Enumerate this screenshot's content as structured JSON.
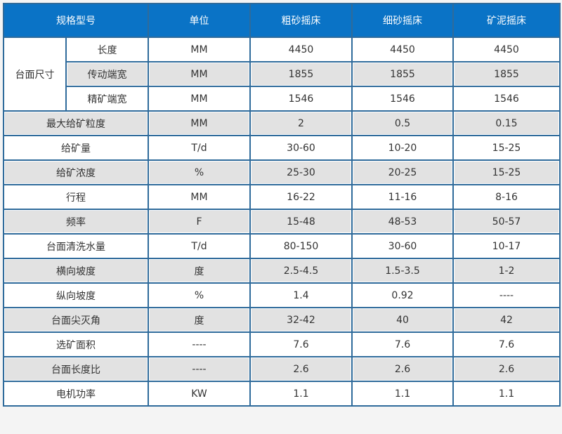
{
  "header": [
    "规格型号",
    "单位",
    "粗砂摇床",
    "细砂摇床",
    "矿泥摇床"
  ],
  "group_label": "台面尺寸",
  "group_rows": [
    {
      "name": "长度",
      "unit": "MM",
      "values": [
        "4450",
        "4450",
        "4450"
      ]
    },
    {
      "name": "传动端宽",
      "unit": "MM",
      "values": [
        "1855",
        "1855",
        "1855"
      ]
    },
    {
      "name": "精矿端宽",
      "unit": "MM",
      "values": [
        "1546",
        "1546",
        "1546"
      ]
    }
  ],
  "rows": [
    {
      "name": "最大给矿粒度",
      "unit": "MM",
      "values": [
        "2",
        "0.5",
        "0.15"
      ]
    },
    {
      "name": "给矿量",
      "unit": "T/d",
      "values": [
        "30-60",
        "10-20",
        "15-25"
      ]
    },
    {
      "name": "给矿浓度",
      "unit": "%",
      "values": [
        "25-30",
        "20-25",
        "15-25"
      ]
    },
    {
      "name": "行程",
      "unit": "MM",
      "values": [
        "16-22",
        "11-16",
        "8-16"
      ]
    },
    {
      "name": "频率",
      "unit": "F",
      "values": [
        "15-48",
        "48-53",
        "50-57"
      ]
    },
    {
      "name": "台面清洗水量",
      "unit": "T/d",
      "values": [
        "80-150",
        "30-60",
        "10-17"
      ]
    },
    {
      "name": "横向坡度",
      "unit": "度",
      "values": [
        "2.5-4.5",
        "1.5-3.5",
        "1-2"
      ]
    },
    {
      "name": "纵向坡度",
      "unit": "%",
      "values": [
        "1.4",
        "0.92",
        "----"
      ]
    },
    {
      "name": "台面尖灭角",
      "unit": "度",
      "values": [
        "32-42",
        "40",
        "42"
      ]
    },
    {
      "name": "选矿面积",
      "unit": "----",
      "values": [
        "7.6",
        "7.6",
        "7.6"
      ]
    },
    {
      "name": "台面长度比",
      "unit": "----",
      "values": [
        "2.6",
        "2.6",
        "2.6"
      ]
    },
    {
      "name": "电机功率",
      "unit": "KW",
      "values": [
        "1.1",
        "1.1",
        "1.1"
      ]
    }
  ]
}
